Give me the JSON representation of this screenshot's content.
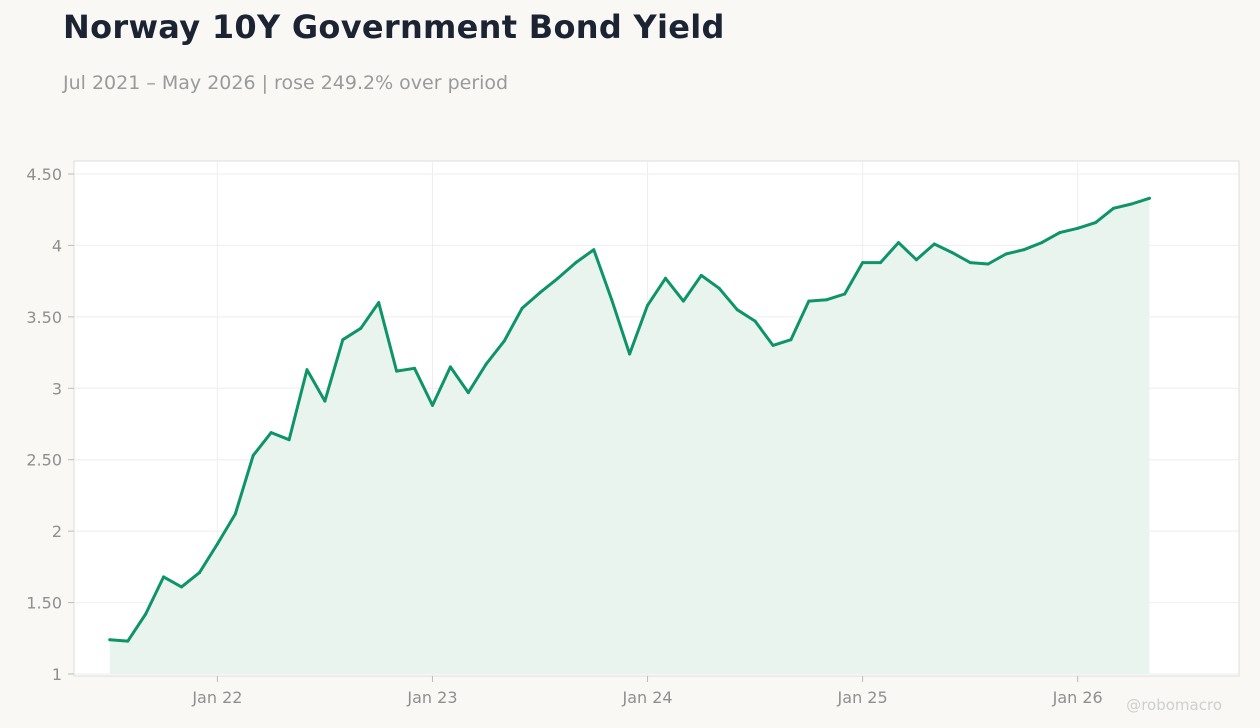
{
  "title": "Norway 10Y Government Bond Yield",
  "subtitle": "Jul 2021 – May 2026 | rose 249.2% over period",
  "watermark": "@robomacro",
  "colors": {
    "line": "#0e9468",
    "area": "#e9f4ef",
    "background": "#f9f8f5",
    "plot_background": "#ffffff",
    "grid": "#eeeeee"
  },
  "chart_data": {
    "type": "area",
    "title": "Norway 10Y Government Bond Yield",
    "xlabel": "",
    "ylabel": "",
    "ylim": [
      1,
      4.5
    ],
    "xlim": [
      "2021-05",
      "2026-10"
    ],
    "grid": true,
    "legend": "none",
    "x_ticks": [
      {
        "date": "2022-01",
        "label": "Jan 22"
      },
      {
        "date": "2023-01",
        "label": "Jan 23"
      },
      {
        "date": "2024-01",
        "label": "Jan 24"
      },
      {
        "date": "2025-01",
        "label": "Jan 25"
      },
      {
        "date": "2026-01",
        "label": "Jan 26"
      }
    ],
    "y_ticks": [
      {
        "value": 1,
        "label": "1"
      },
      {
        "value": 1.5,
        "label": "1.50"
      },
      {
        "value": 2,
        "label": "2"
      },
      {
        "value": 2.5,
        "label": "2.50"
      },
      {
        "value": 3,
        "label": "3"
      },
      {
        "value": 3.5,
        "label": "3.50"
      },
      {
        "value": 4,
        "label": "4"
      },
      {
        "value": 4.5,
        "label": "4.50"
      }
    ],
    "x": [
      "2021-07",
      "2021-08",
      "2021-09",
      "2021-10",
      "2021-11",
      "2021-12",
      "2022-01",
      "2022-02",
      "2022-03",
      "2022-04",
      "2022-05",
      "2022-06",
      "2022-07",
      "2022-08",
      "2022-09",
      "2022-10",
      "2022-11",
      "2022-12",
      "2023-01",
      "2023-02",
      "2023-03",
      "2023-04",
      "2023-05",
      "2023-06",
      "2023-07",
      "2023-08",
      "2023-09",
      "2023-10",
      "2023-11",
      "2023-12",
      "2024-01",
      "2024-02",
      "2024-03",
      "2024-04",
      "2024-05",
      "2024-06",
      "2024-07",
      "2024-08",
      "2024-09",
      "2024-10",
      "2024-11",
      "2024-12",
      "2025-01",
      "2025-02",
      "2025-03",
      "2025-04",
      "2025-05",
      "2025-06",
      "2025-07",
      "2025-08",
      "2025-09",
      "2025-10",
      "2025-11",
      "2025-12",
      "2026-01",
      "2026-02",
      "2026-03",
      "2026-04",
      "2026-05"
    ],
    "values": [
      1.24,
      1.23,
      1.42,
      1.68,
      1.61,
      1.71,
      1.91,
      2.12,
      2.53,
      2.69,
      2.64,
      3.13,
      2.91,
      3.34,
      3.42,
      3.6,
      3.12,
      3.14,
      2.88,
      3.15,
      2.97,
      3.17,
      3.33,
      3.56,
      3.67,
      3.77,
      3.88,
      3.97,
      3.62,
      3.24,
      3.58,
      3.77,
      3.61,
      3.79,
      3.7,
      3.55,
      3.47,
      3.3,
      3.34,
      3.61,
      3.62,
      3.66,
      3.88,
      3.88,
      4.02,
      3.9,
      4.01,
      3.95,
      3.88,
      3.87,
      3.94,
      3.97,
      4.02,
      4.09,
      4.12,
      4.16,
      4.26,
      4.29,
      4.33
    ]
  }
}
